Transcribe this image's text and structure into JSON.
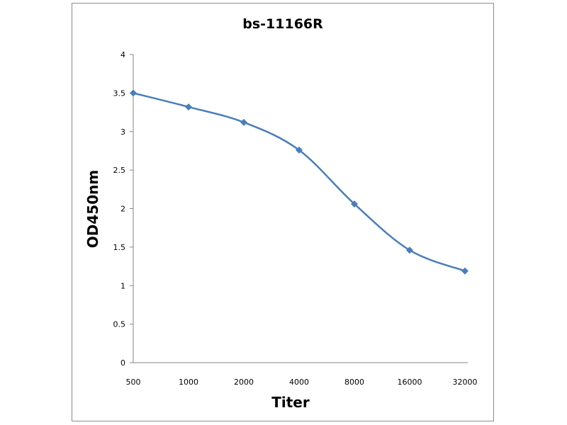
{
  "chart_data": {
    "type": "line",
    "title": "bs-11166R",
    "xlabel": "Titer",
    "ylabel": "OD450nm",
    "categories": [
      "500",
      "1000",
      "2000",
      "4000",
      "8000",
      "16000",
      "32000"
    ],
    "series": [
      {
        "values": [
          3.5,
          3.32,
          3.12,
          2.76,
          2.06,
          1.46,
          1.19
        ]
      }
    ],
    "ylim": [
      0,
      4
    ],
    "yticks": [
      "0",
      "0.5",
      "1",
      "1.5",
      "2",
      "2.5",
      "3",
      "3.5",
      "4"
    ],
    "grid": false,
    "legend": "none",
    "colors": {
      "series": "#4a7ebb",
      "axis": "#868686",
      "frame": "#8c8c8c"
    }
  }
}
